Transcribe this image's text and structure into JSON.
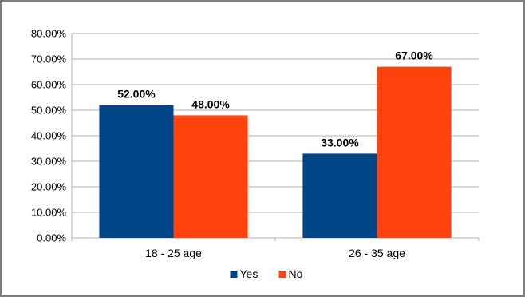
{
  "chart_data": {
    "type": "bar",
    "categories": [
      "18 - 25 age",
      "26 - 35 age"
    ],
    "series": [
      {
        "name": "Yes",
        "values": [
          52.0,
          33.0
        ],
        "value_labels": [
          "52.00%",
          "33.00%"
        ],
        "color": "#004586"
      },
      {
        "name": "No",
        "values": [
          48.0,
          67.0
        ],
        "value_labels": [
          "48.00%",
          "67.00%"
        ],
        "color": "#ff420e"
      }
    ],
    "ylim": [
      0,
      80
    ],
    "y_ticks": [
      0,
      10,
      20,
      30,
      40,
      50,
      60,
      70,
      80
    ],
    "y_tick_labels": [
      "0.00%",
      "10.00%",
      "20.00%",
      "30.00%",
      "40.00%",
      "50.00%",
      "60.00%",
      "70.00%",
      "80.00%"
    ],
    "grid": true,
    "legend_position": "bottom",
    "title": "",
    "xlabel": "",
    "ylabel": ""
  },
  "colors": {
    "grid": "#b3b3b3",
    "axis": "#b3b3b3",
    "frame": "#7f7f7f"
  }
}
